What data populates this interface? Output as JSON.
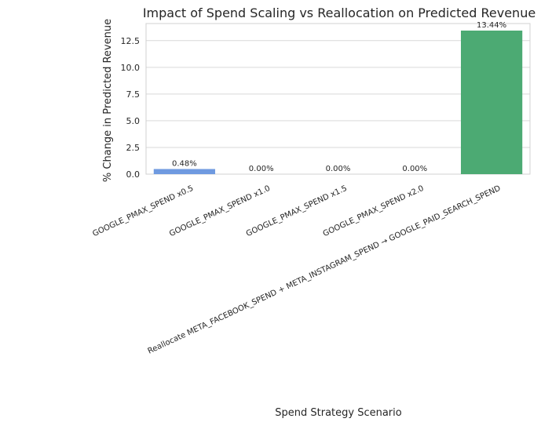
{
  "chart_data": {
    "type": "bar",
    "title": "Impact of Spend Scaling vs Reallocation on Predicted Revenue",
    "xlabel": "Spend Strategy Scenario",
    "ylabel": "% Change in Predicted Revenue",
    "categories": [
      "GOOGLE_PMAX_SPEND x0.5",
      "GOOGLE_PMAX_SPEND x1.0",
      "GOOGLE_PMAX_SPEND x1.5",
      "GOOGLE_PMAX_SPEND x2.0",
      "Reallocate META_FACEBOOK_SPEND + META_INSTAGRAM_SPEND → GOOGLE_PAID_SEARCH_SPEND"
    ],
    "values": [
      0.48,
      0.0,
      0.0,
      0.0,
      13.44
    ],
    "data_labels": [
      "0.48%",
      "0.00%",
      "0.00%",
      "0.00%",
      "13.44%"
    ],
    "bar_colors": [
      "#6f9ae0",
      "#6f9ae0",
      "#6f9ae0",
      "#6f9ae0",
      "#4caa73"
    ],
    "ylim": [
      0,
      14.1
    ],
    "yticks": [
      0.0,
      2.5,
      5.0,
      7.5,
      10.0,
      12.5
    ],
    "ytick_labels": [
      "0.0",
      "2.5",
      "5.0",
      "7.5",
      "10.0",
      "12.5"
    ],
    "grid": "horizontal",
    "legend": "none"
  }
}
